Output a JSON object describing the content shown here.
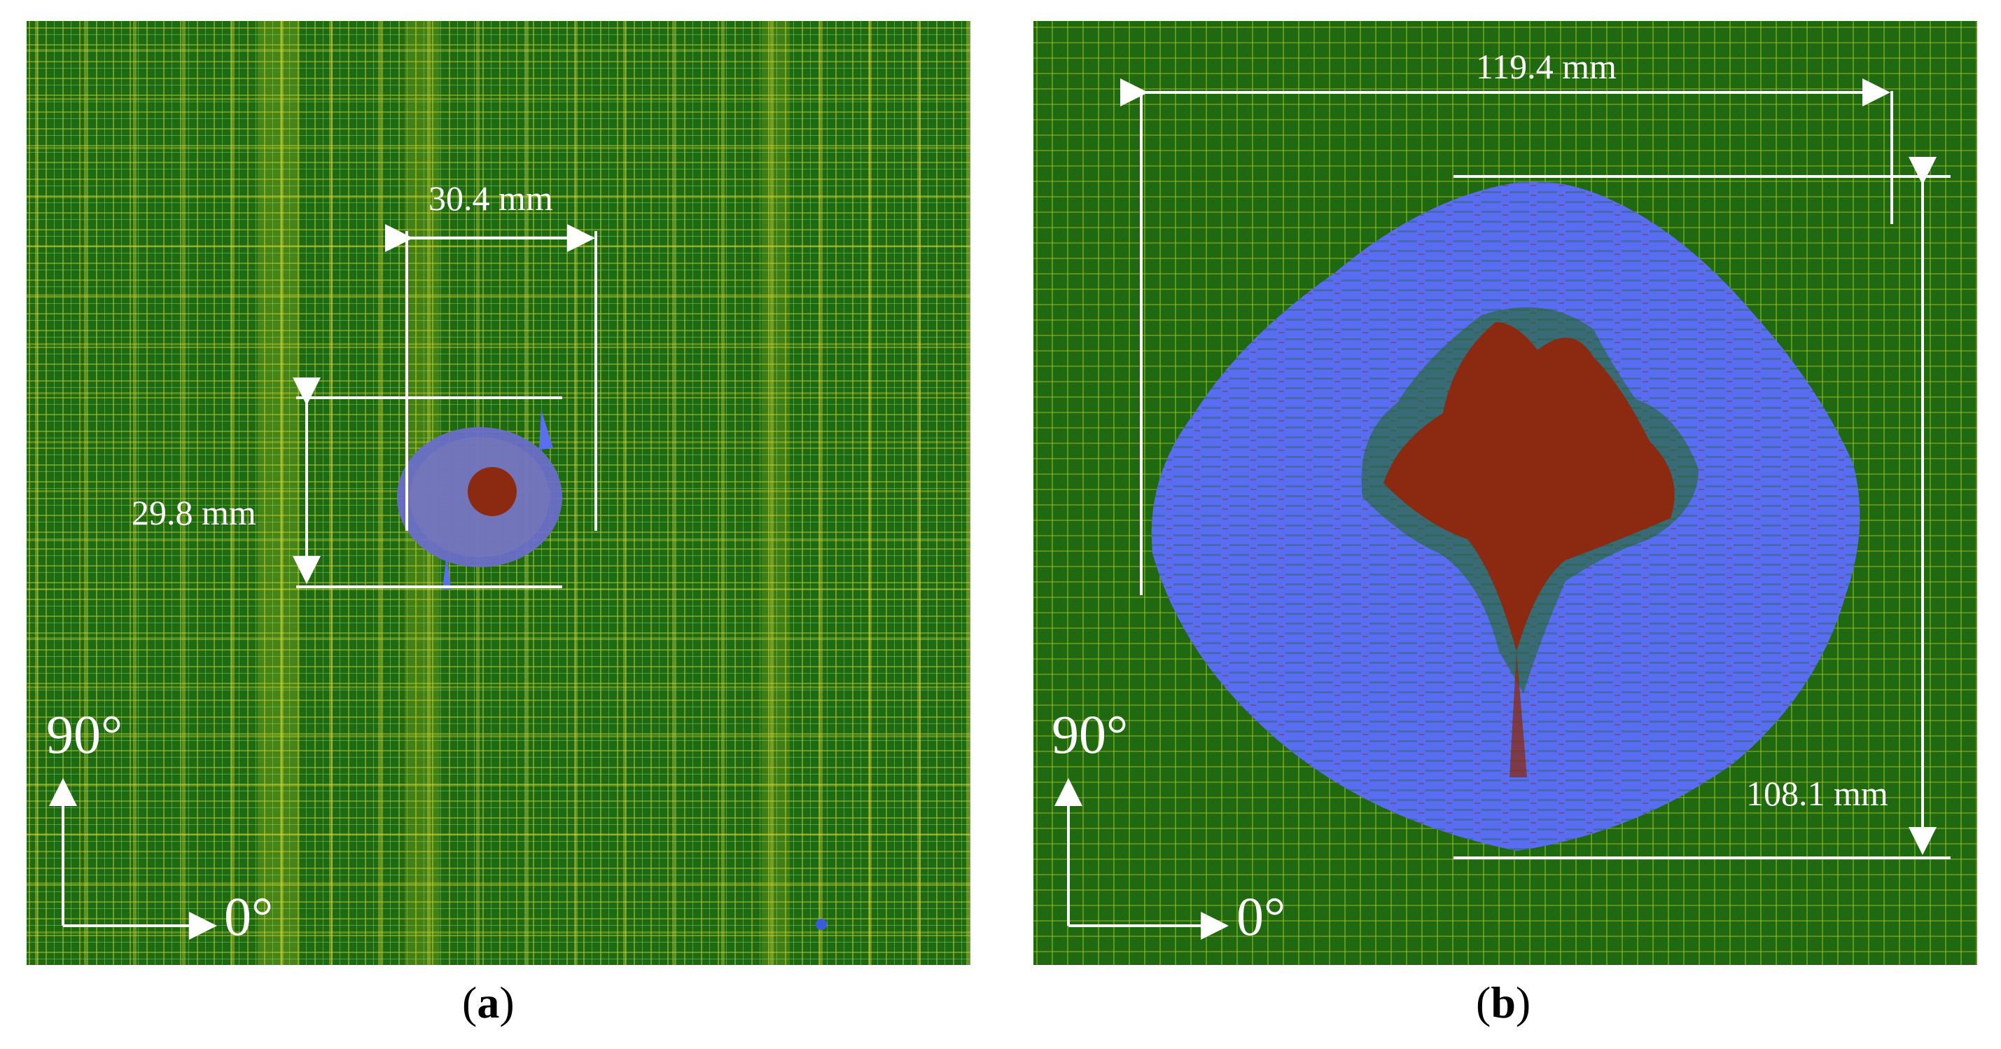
{
  "figure": {
    "panels": [
      {
        "id": "a",
        "caption_open": "(",
        "caption_letter": "a",
        "caption_close": ")",
        "width_label": "30.4 mm",
        "height_label": "29.8 mm",
        "axis_vertical": "90°",
        "axis_horizontal": "0°"
      },
      {
        "id": "b",
        "caption_open": "(",
        "caption_letter": "b",
        "caption_close": ")",
        "width_label": "119.4 mm",
        "height_label": "108.1 mm",
        "axis_vertical": "90°",
        "axis_horizontal": "0°"
      }
    ],
    "colors": {
      "background_green": "#1d6a10",
      "fiber_yellow": "#c8d22a",
      "damage_blue": "#5a6ef0",
      "core_red": "#8b2a10",
      "annotation": "#ffffff"
    }
  }
}
